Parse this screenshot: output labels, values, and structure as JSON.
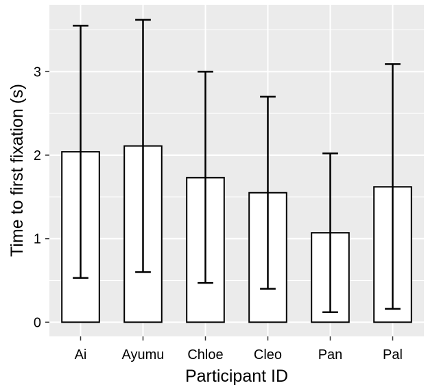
{
  "chart_data": {
    "type": "bar",
    "title": "",
    "xlabel": "Participant ID",
    "ylabel": "Time to first fixation (s)",
    "categories": [
      "Ai",
      "Ayumu",
      "Chloe",
      "Cleo",
      "Pan",
      "Pal"
    ],
    "values": [
      2.04,
      2.11,
      1.73,
      1.55,
      1.07,
      1.62
    ],
    "error_bars": [
      {
        "low": 0.53,
        "high": 3.55
      },
      {
        "low": 0.6,
        "high": 3.62
      },
      {
        "low": 0.47,
        "high": 3.0
      },
      {
        "low": 0.4,
        "high": 2.7
      },
      {
        "low": 0.12,
        "high": 2.02
      },
      {
        "low": 0.16,
        "high": 3.09
      }
    ],
    "yticks": [
      0,
      1,
      2,
      3
    ],
    "ylim": [
      -0.17,
      3.8
    ],
    "grid": true,
    "panel_background": "#ebebeb",
    "grid_color": "#ffffff",
    "bar_fill": "#ffffff",
    "bar_stroke": "#000000"
  }
}
